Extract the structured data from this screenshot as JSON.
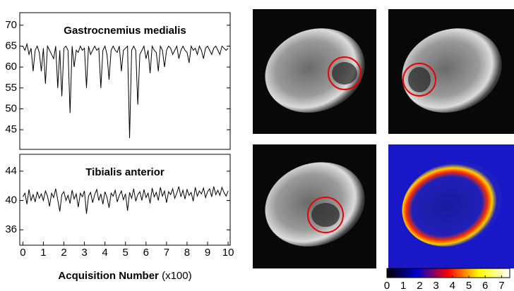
{
  "chart_data": [
    {
      "type": "line",
      "title": "Gastrocnemius medialis",
      "color": "#000000",
      "x": [
        0,
        0.1,
        0.2,
        0.3,
        0.4,
        0.5,
        0.6,
        0.7,
        0.8,
        0.9,
        1,
        1.1,
        1.2,
        1.3,
        1.4,
        1.5,
        1.6,
        1.7,
        1.8,
        1.9,
        2,
        2.1,
        2.2,
        2.3,
        2.4,
        2.5,
        2.6,
        2.7,
        2.8,
        2.9,
        3,
        3.1,
        3.2,
        3.3,
        3.4,
        3.5,
        3.6,
        3.7,
        3.8,
        3.9,
        4,
        4.1,
        4.2,
        4.3,
        4.4,
        4.5,
        4.6,
        4.7,
        4.8,
        4.9,
        5,
        5.1,
        5.2,
        5.3,
        5.4,
        5.5,
        5.6,
        5.7,
        5.8,
        5.9,
        6,
        6.1,
        6.2,
        6.3,
        6.4,
        6.5,
        6.6,
        6.7,
        6.8,
        6.9,
        7,
        7.1,
        7.2,
        7.3,
        7.4,
        7.5,
        7.6,
        7.7,
        7.8,
        7.9,
        8,
        8.1,
        8.2,
        8.3,
        8.4,
        8.5,
        8.6,
        8.7,
        8.8,
        8.9,
        9,
        9.1,
        9.2,
        9.3,
        9.4,
        9.5,
        9.6,
        9.7,
        9.8,
        9.9,
        10
      ],
      "values": [
        65,
        64,
        65.5,
        63,
        64.5,
        59,
        64,
        65,
        63.5,
        59,
        64.5,
        56,
        65,
        64,
        63,
        62,
        65,
        55,
        64,
        53,
        64.5,
        65,
        64,
        49,
        65,
        60,
        64,
        63.5,
        65,
        64,
        64.5,
        55,
        65,
        63,
        64,
        65,
        64,
        64.5,
        55,
        64,
        65,
        63,
        57,
        64,
        65,
        64,
        63.5,
        65,
        59,
        64,
        64.5,
        65,
        43,
        64,
        65,
        64,
        51,
        63,
        64,
        65,
        62,
        64,
        58.5,
        65,
        64,
        63.5,
        59,
        65,
        64,
        60,
        64,
        65,
        64.5,
        63,
        64,
        65,
        62,
        64,
        65,
        64,
        63.5,
        61,
        65,
        64,
        64.5,
        63,
        65,
        64,
        62,
        64.5,
        65,
        64,
        63,
        64.5,
        65,
        64,
        63,
        65,
        64.5,
        64,
        64.5
      ],
      "xlim": [
        -0.15,
        10.1
      ],
      "ylim": [
        40.3,
        73
      ],
      "yticks": [
        45,
        50,
        55,
        60,
        65,
        70
      ]
    },
    {
      "type": "line",
      "title": "Tibialis anterior",
      "color": "#000000",
      "x": [
        0,
        0.1,
        0.2,
        0.3,
        0.4,
        0.5,
        0.6,
        0.7,
        0.8,
        0.9,
        1,
        1.1,
        1.2,
        1.3,
        1.4,
        1.5,
        1.6,
        1.7,
        1.8,
        1.9,
        2,
        2.1,
        2.2,
        2.3,
        2.4,
        2.5,
        2.6,
        2.7,
        2.8,
        2.9,
        3,
        3.1,
        3.2,
        3.3,
        3.4,
        3.5,
        3.6,
        3.7,
        3.8,
        3.9,
        4,
        4.1,
        4.2,
        4.3,
        4.4,
        4.5,
        4.6,
        4.7,
        4.8,
        4.9,
        5,
        5.1,
        5.2,
        5.3,
        5.4,
        5.5,
        5.6,
        5.7,
        5.8,
        5.9,
        6,
        6.1,
        6.2,
        6.3,
        6.4,
        6.5,
        6.6,
        6.7,
        6.8,
        6.9,
        7,
        7.1,
        7.2,
        7.3,
        7.4,
        7.5,
        7.6,
        7.7,
        7.8,
        7.9,
        8,
        8.1,
        8.2,
        8.3,
        8.4,
        8.5,
        8.6,
        8.7,
        8.8,
        8.9,
        9,
        9.1,
        9.2,
        9.3,
        9.4,
        9.5,
        9.6,
        9.7,
        9.8,
        9.9,
        10
      ],
      "values": [
        40.5,
        41,
        39.5,
        41.5,
        40,
        40.8,
        39.8,
        41.2,
        40.3,
        40.9,
        40,
        41.3,
        40.6,
        39.2,
        41,
        40.4,
        41.6,
        40.1,
        38.5,
        40.8,
        41.2,
        40,
        40.7,
        39.6,
        41.4,
        40.2,
        40.9,
        39.1,
        41,
        40.5,
        41.3,
        38.2,
        40.6,
        41.1,
        39.7,
        40.8,
        41.5,
        40,
        40.9,
        39.5,
        41.2,
        40.4,
        39,
        41,
        40.6,
        41.4,
        39.8,
        40.7,
        41.3,
        40.1,
        40.9,
        38.6,
        41.1,
        40.3,
        41.6,
        39.9,
        40.8,
        41.2,
        40,
        41.5,
        40.4,
        41,
        39.6,
        41.7,
        40.5,
        41.1,
        40,
        41.8,
        40.6,
        41.3,
        39.7,
        41.2,
        40.8,
        41.6,
        40.3,
        41,
        41.9,
        40.5,
        41.4,
        40.2,
        41.5,
        40.7,
        41.1,
        39.9,
        41.8,
        40.6,
        41.3,
        40.9,
        41.7,
        40.4,
        41.2,
        41.6,
        40.5,
        41.9,
        40.8,
        41.4,
        40.7,
        41.8,
        41.1,
        40.6,
        41.3
      ],
      "xlim": [
        -0.15,
        10.1
      ],
      "ylim": [
        33.9,
        46.3
      ],
      "yticks": [
        36,
        40,
        44
      ],
      "xticks": [
        0,
        1,
        2,
        3,
        4,
        5,
        6,
        7,
        8,
        9,
        10
      ],
      "xlabel": "Acquisition Number",
      "xlabel_unit": "(x100)"
    },
    {
      "type": "colorbar",
      "xlim": [
        0,
        7.5
      ],
      "xticks": [
        0,
        1,
        2,
        3,
        4,
        5,
        6,
        7
      ],
      "colors": [
        "#000000",
        "#0000d0",
        "#ff0000",
        "#ffff00",
        "#ffffff"
      ]
    }
  ]
}
